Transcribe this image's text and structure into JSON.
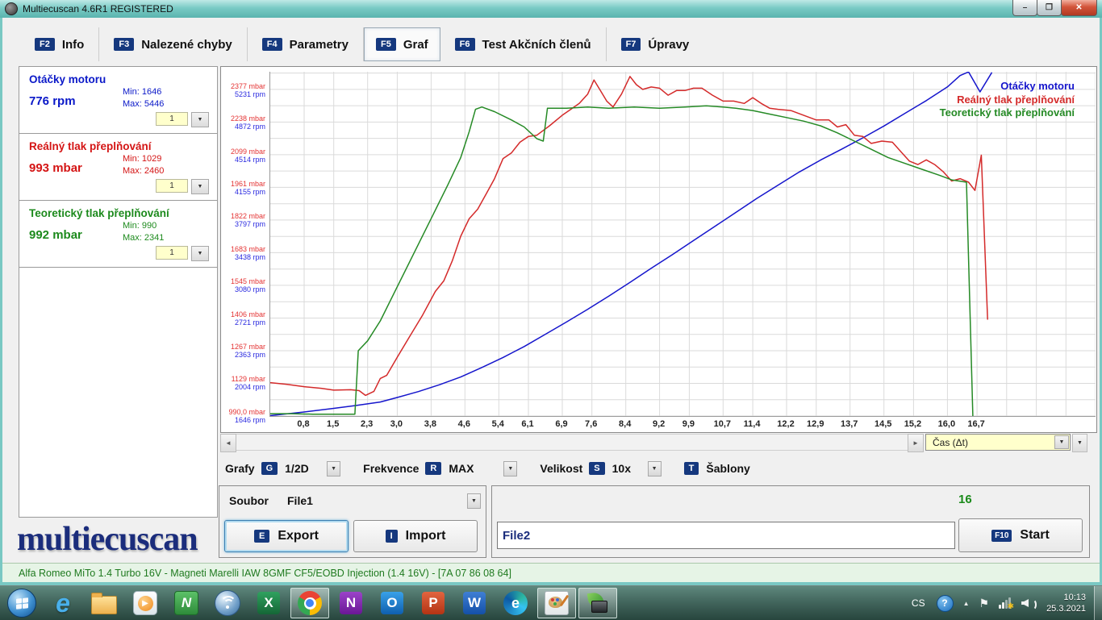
{
  "window": {
    "title": "Multiecuscan 4.6R1 REGISTERED",
    "buttons": {
      "minimize": "–",
      "restore": "❐",
      "close": "✕"
    }
  },
  "tabs": [
    {
      "key": "F2",
      "label": "Info"
    },
    {
      "key": "F3",
      "label": "Nalezené chyby"
    },
    {
      "key": "F4",
      "label": "Parametry"
    },
    {
      "key": "F5",
      "label": "Graf"
    },
    {
      "key": "F6",
      "label": "Test Akčních členů"
    },
    {
      "key": "F7",
      "label": "Úpravy"
    }
  ],
  "sidebar": {
    "panels": [
      {
        "title": "Otáčky motoru",
        "value": "776 rpm",
        "min": "Min: 1646",
        "max": "Max: 5446",
        "scale": "1",
        "color": "#0a18c8"
      },
      {
        "title": "Reálný tlak přeplňování",
        "value": "993 mbar",
        "min": "Min: 1029",
        "max": "Max: 2460",
        "scale": "1",
        "color": "#d41414"
      },
      {
        "title": "Teoretický tlak přeplňování",
        "value": "992 mbar",
        "min": "Min: 990",
        "max": "Max: 2341",
        "scale": "1",
        "color": "#1d8a1d"
      }
    ],
    "logo": "multiecuscan"
  },
  "chart": {
    "legend": [
      {
        "label": "Otáčky motoru",
        "color": "#1515cc"
      },
      {
        "label": "Reálný tlak přeplňování",
        "color": "#d42a2a"
      },
      {
        "label": "Teoretický tlak přeplňování",
        "color": "#258a25"
      }
    ],
    "y_axis": [
      {
        "mbar": "2377 mbar",
        "rpm": "5231 rpm",
        "v": 2377
      },
      {
        "mbar": "2238 mbar",
        "rpm": "4872 rpm",
        "v": 2238
      },
      {
        "mbar": "2099 mbar",
        "rpm": "4514 rpm",
        "v": 2099
      },
      {
        "mbar": "1961 mbar",
        "rpm": "4155 rpm",
        "v": 1961
      },
      {
        "mbar": "1822 mbar",
        "rpm": "3797 rpm",
        "v": 1822
      },
      {
        "mbar": "1683 mbar",
        "rpm": "3438 rpm",
        "v": 1683
      },
      {
        "mbar": "1545 mbar",
        "rpm": "3080 rpm",
        "v": 1545
      },
      {
        "mbar": "1406 mbar",
        "rpm": "2721 rpm",
        "v": 1406
      },
      {
        "mbar": "1267 mbar",
        "rpm": "2363 rpm",
        "v": 1267
      },
      {
        "mbar": "1129 mbar",
        "rpm": "2004 rpm",
        "v": 1129
      },
      {
        "mbar": "990,0 mbar",
        "rpm": "1646 rpm",
        "v": 990
      }
    ],
    "x_ticks": [
      "0,8",
      "1,5",
      "2,3",
      "3,0",
      "3,8",
      "4,6",
      "5,4",
      "6,1",
      "6,9",
      "7,6",
      "8,4",
      "9,2",
      "9,9",
      "10,7",
      "11,4",
      "12,2",
      "12,9",
      "13,7",
      "14,5",
      "15,2",
      "16,0",
      "16,7"
    ],
    "scroll_combo": "Čas (Δt)"
  },
  "chart_data": {
    "type": "line",
    "title": "",
    "xlabel": "Čas (Δt) [s]",
    "x_range": [
      0,
      19.5
    ],
    "pressure_range_mbar": [
      990,
      2455
    ],
    "rpm_range": [
      1646,
      5432
    ],
    "grid": true,
    "legend_position": "top-right",
    "series": [
      {
        "name": "Otáčky motoru",
        "axis": "rpm",
        "unit": "rpm",
        "color": "#1515cc",
        "points": [
          [
            0,
            1650
          ],
          [
            0.8,
            1690
          ],
          [
            1.5,
            1730
          ],
          [
            2.0,
            1760
          ],
          [
            2.3,
            1780
          ],
          [
            2.6,
            1800
          ],
          [
            3.0,
            1850
          ],
          [
            3.5,
            1915
          ],
          [
            4.0,
            1990
          ],
          [
            4.5,
            2075
          ],
          [
            5.0,
            2180
          ],
          [
            5.5,
            2290
          ],
          [
            6.0,
            2410
          ],
          [
            6.5,
            2545
          ],
          [
            7.0,
            2680
          ],
          [
            7.5,
            2820
          ],
          [
            8.0,
            2965
          ],
          [
            8.5,
            3115
          ],
          [
            9.0,
            3270
          ],
          [
            9.5,
            3420
          ],
          [
            10.0,
            3575
          ],
          [
            10.5,
            3730
          ],
          [
            11.0,
            3885
          ],
          [
            11.5,
            4040
          ],
          [
            12.0,
            4185
          ],
          [
            12.5,
            4330
          ],
          [
            13.0,
            4460
          ],
          [
            13.5,
            4580
          ],
          [
            14.0,
            4705
          ],
          [
            14.5,
            4835
          ],
          [
            15.0,
            4975
          ],
          [
            15.5,
            5115
          ],
          [
            16.0,
            5265
          ],
          [
            16.3,
            5390
          ],
          [
            16.5,
            5430
          ],
          [
            16.77,
            5210
          ],
          [
            17.05,
            5425
          ]
        ]
      },
      {
        "name": "Reálný tlak přeplňování",
        "axis": "mbar",
        "unit": "mbar",
        "color": "#d42a2a",
        "points": [
          [
            0,
            1132
          ],
          [
            0.4,
            1125
          ],
          [
            0.8,
            1115
          ],
          [
            1.2,
            1108
          ],
          [
            1.5,
            1100
          ],
          [
            1.9,
            1102
          ],
          [
            2.1,
            1098
          ],
          [
            2.25,
            1078
          ],
          [
            2.45,
            1095
          ],
          [
            2.6,
            1150
          ],
          [
            2.75,
            1163
          ],
          [
            3.0,
            1240
          ],
          [
            3.3,
            1330
          ],
          [
            3.6,
            1420
          ],
          [
            3.9,
            1520
          ],
          [
            4.1,
            1565
          ],
          [
            4.3,
            1650
          ],
          [
            4.5,
            1755
          ],
          [
            4.7,
            1830
          ],
          [
            4.9,
            1870
          ],
          [
            5.1,
            1935
          ],
          [
            5.3,
            2000
          ],
          [
            5.5,
            2085
          ],
          [
            5.7,
            2110
          ],
          [
            5.9,
            2155
          ],
          [
            6.1,
            2180
          ],
          [
            6.3,
            2185
          ],
          [
            6.6,
            2225
          ],
          [
            6.9,
            2270
          ],
          [
            7.1,
            2295
          ],
          [
            7.3,
            2320
          ],
          [
            7.5,
            2360
          ],
          [
            7.65,
            2420
          ],
          [
            7.8,
            2375
          ],
          [
            7.95,
            2330
          ],
          [
            8.1,
            2305
          ],
          [
            8.3,
            2360
          ],
          [
            8.5,
            2435
          ],
          [
            8.65,
            2400
          ],
          [
            8.8,
            2380
          ],
          [
            9.0,
            2390
          ],
          [
            9.2,
            2385
          ],
          [
            9.4,
            2355
          ],
          [
            9.6,
            2375
          ],
          [
            9.8,
            2375
          ],
          [
            10.0,
            2385
          ],
          [
            10.2,
            2385
          ],
          [
            10.45,
            2355
          ],
          [
            10.7,
            2330
          ],
          [
            10.95,
            2330
          ],
          [
            11.2,
            2320
          ],
          [
            11.4,
            2345
          ],
          [
            11.6,
            2320
          ],
          [
            11.8,
            2300
          ],
          [
            12.0,
            2295
          ],
          [
            12.3,
            2290
          ],
          [
            12.6,
            2270
          ],
          [
            12.9,
            2250
          ],
          [
            13.2,
            2250
          ],
          [
            13.4,
            2220
          ],
          [
            13.6,
            2230
          ],
          [
            13.8,
            2185
          ],
          [
            14.0,
            2180
          ],
          [
            14.2,
            2150
          ],
          [
            14.45,
            2160
          ],
          [
            14.7,
            2155
          ],
          [
            14.9,
            2115
          ],
          [
            15.1,
            2075
          ],
          [
            15.3,
            2060
          ],
          [
            15.5,
            2080
          ],
          [
            15.7,
            2060
          ],
          [
            15.9,
            2030
          ],
          [
            16.1,
            1990
          ],
          [
            16.3,
            2000
          ],
          [
            16.5,
            1985
          ],
          [
            16.65,
            1950
          ],
          [
            16.8,
            2100
          ],
          [
            16.95,
            1400
          ]
        ]
      },
      {
        "name": "Teoretický tlak přeplňování",
        "axis": "mbar",
        "unit": "mbar",
        "color": "#258a25",
        "points": [
          [
            0,
            1000
          ],
          [
            0.5,
            1000
          ],
          [
            1.0,
            998
          ],
          [
            1.5,
            998
          ],
          [
            2.0,
            998
          ],
          [
            2.08,
            1268
          ],
          [
            2.3,
            1310
          ],
          [
            2.6,
            1395
          ],
          [
            3.0,
            1540
          ],
          [
            3.4,
            1685
          ],
          [
            3.8,
            1830
          ],
          [
            4.2,
            1975
          ],
          [
            4.5,
            2090
          ],
          [
            4.7,
            2200
          ],
          [
            4.85,
            2295
          ],
          [
            5.0,
            2305
          ],
          [
            5.3,
            2285
          ],
          [
            5.7,
            2250
          ],
          [
            6.0,
            2220
          ],
          [
            6.3,
            2170
          ],
          [
            6.45,
            2160
          ],
          [
            6.55,
            2300
          ],
          [
            7.0,
            2300
          ],
          [
            7.5,
            2305
          ],
          [
            8.0,
            2300
          ],
          [
            8.6,
            2305
          ],
          [
            9.2,
            2300
          ],
          [
            9.8,
            2305
          ],
          [
            10.3,
            2310
          ],
          [
            10.7,
            2305
          ],
          [
            11.0,
            2300
          ],
          [
            11.4,
            2290
          ],
          [
            11.8,
            2275
          ],
          [
            12.2,
            2260
          ],
          [
            12.6,
            2245
          ],
          [
            13.0,
            2225
          ],
          [
            13.4,
            2195
          ],
          [
            13.8,
            2160
          ],
          [
            14.2,
            2125
          ],
          [
            14.6,
            2090
          ],
          [
            15.0,
            2065
          ],
          [
            15.4,
            2040
          ],
          [
            15.8,
            2015
          ],
          [
            16.1,
            1995
          ],
          [
            16.35,
            1988
          ],
          [
            16.45,
            1985
          ],
          [
            16.6,
            990
          ]
        ]
      }
    ]
  },
  "controls": {
    "grafy_label": "Grafy",
    "grafy_key": "G",
    "grafy_value": "1/2D",
    "frekvence_label": "Frekvence",
    "frekvence_key": "R",
    "frekvence_value": "MAX",
    "velikost_label": "Velikost",
    "velikost_key": "S",
    "velikost_value": "10x",
    "sablony_key": "T",
    "sablony_label": "Šablony"
  },
  "file_panel": {
    "soubor_label": "Soubor",
    "file_value": "File1",
    "export_key": "E",
    "export_label": "Export",
    "import_key": "I",
    "import_label": "Import"
  },
  "record_panel": {
    "count": "16",
    "file_input_value": "File2",
    "start_key": "F10",
    "start_label": "Start"
  },
  "status_bar": {
    "text": "Alfa Romeo MiTo 1.4 Turbo 16V - Magneti Marelli IAW 8GMF CF5/EOBD Injection (1.4 16V) - [7A 07 86 08 64]"
  },
  "taskbar": {
    "tray": {
      "language": "CS",
      "time": "10:13",
      "date": "25.3.2021"
    }
  }
}
